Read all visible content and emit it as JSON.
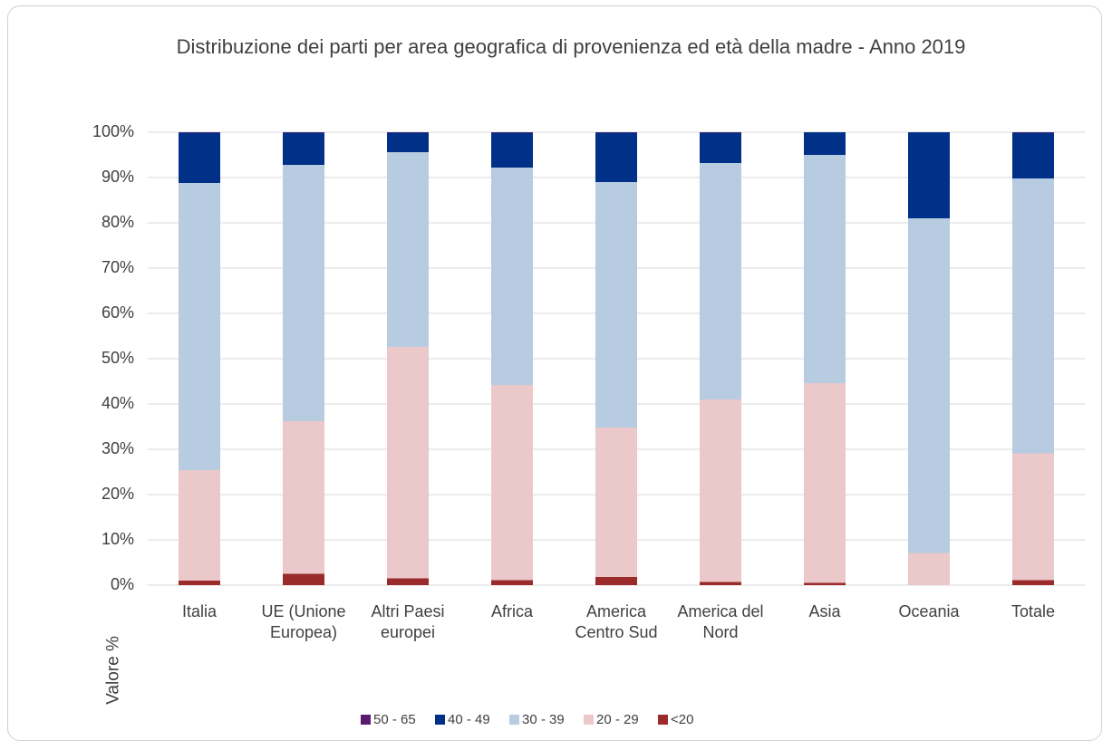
{
  "chart_data": {
    "type": "stacked_bar",
    "title": "Distribuzione dei parti per area geografica di provenienza ed età della madre - Anno 2019",
    "y_label": "Valore %",
    "categories": [
      "Italia",
      "UE (Unione Europea)",
      "Altri Paesi europei",
      "Africa",
      "America Centro Sud",
      "America del Nord",
      "Asia",
      "Oceania",
      "Totale"
    ],
    "series": [
      {
        "name": "<20",
        "color": "#9b2a2a",
        "values": [
          1.0,
          2.5,
          1.5,
          1.1,
          1.8,
          0.7,
          0.5,
          0,
          1.1
        ]
      },
      {
        "name": "20 - 29",
        "color": "#ebc8c9",
        "values": [
          24.4,
          33.7,
          51.1,
          43.1,
          33.0,
          40.3,
          44.1,
          7.1,
          28.0
        ]
      },
      {
        "name": "30 - 39",
        "color": "#b7cbe1",
        "values": [
          63.4,
          56.6,
          43.0,
          48.0,
          54.2,
          52.2,
          50.4,
          73.9,
          60.7
        ]
      },
      {
        "name": "40 - 49",
        "color": "#003087",
        "values": [
          11.1,
          7.1,
          4.3,
          7.7,
          10.9,
          6.7,
          5.0,
          19.0,
          10.1
        ]
      },
      {
        "name": "50 - 65",
        "color": "#5b1a6e",
        "values": [
          0.1,
          0.1,
          0.1,
          0.1,
          0.1,
          0.1,
          0,
          0,
          0.1
        ]
      }
    ],
    "legend_order": [
      4,
      3,
      2,
      1,
      0
    ],
    "ylim": [
      0,
      100
    ],
    "yticks": [
      {
        "value": 0,
        "label": "0%"
      },
      {
        "value": 10,
        "label": "10%"
      },
      {
        "value": 20,
        "label": "20%"
      },
      {
        "value": 30,
        "label": "30%"
      },
      {
        "value": 40,
        "label": "40%"
      },
      {
        "value": 50,
        "label": "50%"
      },
      {
        "value": 60,
        "label": "60%"
      },
      {
        "value": 70,
        "label": "70%"
      },
      {
        "value": 80,
        "label": "80%"
      },
      {
        "value": 90,
        "label": "90%"
      },
      {
        "value": 100,
        "label": "100%"
      }
    ],
    "grid": true
  }
}
